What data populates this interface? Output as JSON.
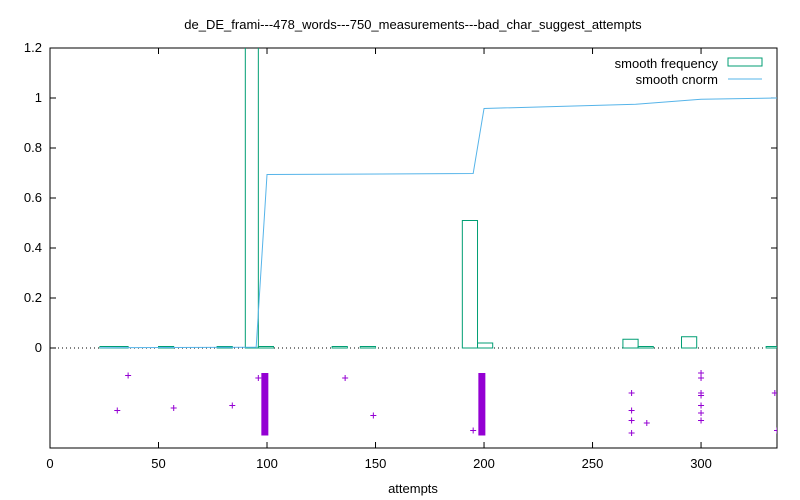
{
  "chart_data": {
    "type": "bar",
    "title": "de_DE_frami---478_words---750_measurements---bad_char_suggest_attempts",
    "xlabel": "attempts",
    "ylabel": "",
    "xlim": [
      0,
      335
    ],
    "ylim": [
      0,
      1.2
    ],
    "x_ticks": [
      0,
      50,
      100,
      150,
      200,
      250,
      300
    ],
    "y_ticks": [
      0,
      0.2,
      0.4,
      0.6,
      0.8,
      1,
      1.2
    ],
    "y_tick_labels": [
      "0",
      "0.2",
      "0.4",
      "0.6",
      "0.8",
      "1",
      "1.2"
    ],
    "grid": false,
    "legend_position": "top-right",
    "colors": {
      "frequency": "#009e73",
      "cnorm": "#56b4e9",
      "points": "#9400d3",
      "zero_line": "#000000"
    },
    "series": [
      {
        "name": "smooth frequency",
        "style": "boxes",
        "bars": [
          {
            "x0": 23,
            "x1": 36,
            "y": 0.002
          },
          {
            "x0": 50,
            "x1": 57,
            "y": 0.002
          },
          {
            "x0": 77,
            "x1": 84,
            "y": 0.002
          },
          {
            "x0": 90,
            "x1": 96,
            "y": 1.25
          },
          {
            "x0": 96,
            "x1": 103,
            "y": 0.002
          },
          {
            "x0": 130,
            "x1": 137,
            "y": 0.002
          },
          {
            "x0": 143,
            "x1": 150,
            "y": 0.002
          },
          {
            "x0": 190,
            "x1": 197,
            "y": 0.51
          },
          {
            "x0": 197,
            "x1": 204,
            "y": 0.02
          },
          {
            "x0": 264,
            "x1": 271,
            "y": 0.035
          },
          {
            "x0": 271,
            "x1": 278,
            "y": 0.002
          },
          {
            "x0": 291,
            "x1": 298,
            "y": 0.045
          },
          {
            "x0": 330,
            "x1": 335,
            "y": 0.002
          }
        ]
      },
      {
        "name": "smooth cnorm",
        "style": "line",
        "points": [
          [
            23,
            0.001
          ],
          [
            95,
            0.003
          ],
          [
            100,
            0.694
          ],
          [
            195,
            0.698
          ],
          [
            200,
            0.958
          ],
          [
            270,
            0.975
          ],
          [
            300,
            0.995
          ],
          [
            335,
            1.0
          ]
        ]
      },
      {
        "name": "",
        "style": "points",
        "points": [
          [
            31,
            -0.25
          ],
          [
            36,
            -0.11
          ],
          [
            57,
            -0.24
          ],
          [
            84,
            -0.23
          ],
          [
            96,
            -0.12
          ],
          [
            136,
            -0.12
          ],
          [
            149,
            -0.27
          ],
          [
            195,
            -0.33
          ],
          [
            268,
            -0.18
          ],
          [
            268,
            -0.25
          ],
          [
            268,
            -0.29
          ],
          [
            268,
            -0.34
          ],
          [
            275,
            -0.3
          ],
          [
            300,
            -0.1
          ],
          [
            300,
            -0.12
          ],
          [
            300,
            -0.18
          ],
          [
            300,
            -0.19
          ],
          [
            300,
            -0.23
          ],
          [
            300,
            -0.26
          ],
          [
            300,
            -0.29
          ],
          [
            334,
            -0.18
          ],
          [
            335,
            -0.33
          ]
        ],
        "dense_columns": [
          {
            "x": 99,
            "y_top": -0.1,
            "y_bottom": -0.35
          },
          {
            "x": 199,
            "y_top": -0.1,
            "y_bottom": -0.35
          }
        ]
      }
    ]
  }
}
